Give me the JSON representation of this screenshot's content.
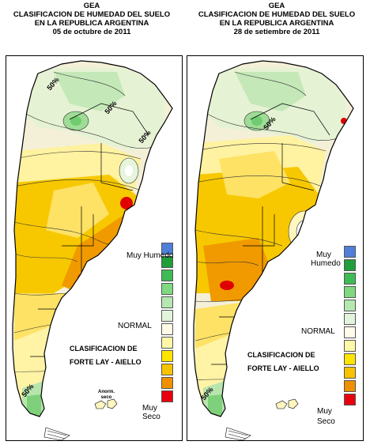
{
  "left": {
    "title1": "GEA",
    "title2": "CLASIFICACION DE HUMEDAD DEL SUELO",
    "title3": "EN LA REPUBLICA ARGENTINA",
    "date": "05 de octubre de 2011",
    "legend_top": "Muy Humedo",
    "legend_mid": "NORMAL",
    "legend_bottom1": "Muy",
    "legend_bottom2": "Seco",
    "class_title1": "CLASIFICACION DE",
    "class_title2": "FORTE LAY - AIELLO",
    "anom1": "Anorm.",
    "anom2": "seco",
    "pct_labels": [
      "50%",
      "50%",
      "50%",
      "50%"
    ]
  },
  "right": {
    "title1": "GEA",
    "title2": "CLASIFICACION DE HUMEDAD DEL SUELO",
    "title3": "EN LA REPUBLICA ARGENTINA",
    "date": "28 de setiembre de 2011",
    "legend_top1": "Muy",
    "legend_top2": "Humedo",
    "legend_mid": "NORMAL",
    "legend_bottom1": "Muy",
    "legend_bottom2": "Seco",
    "class_title1": "CLASIFICACION DE",
    "class_title2": "FORTE LAY - AIELLO",
    "pct_labels": [
      "50%",
      "50%"
    ]
  },
  "legend_colors": [
    "#4f7fd9",
    "#1f9e3a",
    "#3dbb55",
    "#7fd97f",
    "#b5e8b0",
    "#e2f3dc",
    "#fffbe8",
    "#fff7a8",
    "#ffe400",
    "#f7c200",
    "#f08f00",
    "#e8000f"
  ]
}
